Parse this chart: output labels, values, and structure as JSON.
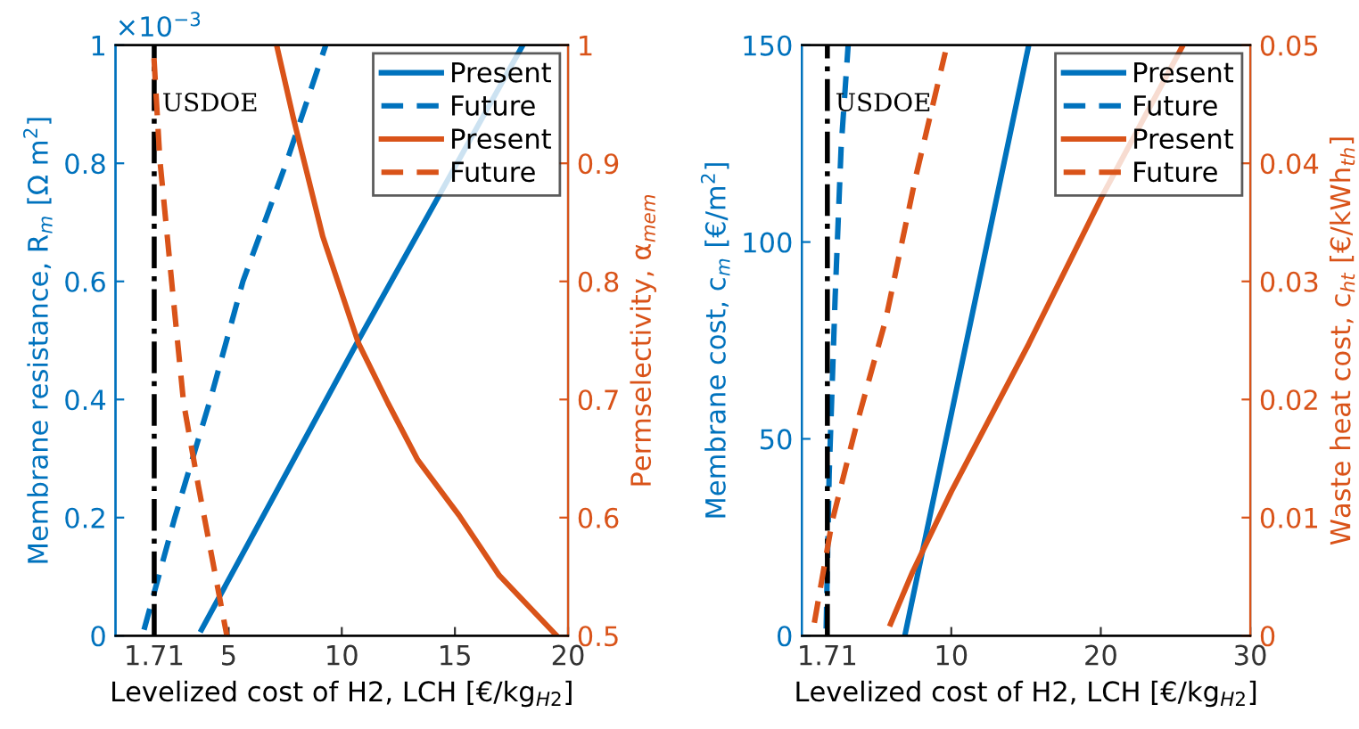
{
  "chart_data": [
    {
      "type": "line",
      "xlabel": "Levelized cost of H2, LCH [€/kg$_{H2}$]",
      "ylabel": "Membrane resistance, R$_{m}$ [Ω m$^{2}$]",
      "y2label": "Permselectivity, α$_{mem}$",
      "xlim": [
        0,
        20
      ],
      "xticks": [
        1.71,
        5,
        10,
        15,
        20
      ],
      "ylim": [
        0,
        1
      ],
      "yticks": [
        0,
        0.2,
        0.4,
        0.6,
        0.8,
        1
      ],
      "y2lim": [
        0.5,
        1
      ],
      "y2ticks": [
        0.5,
        0.6,
        0.7,
        0.8,
        0.9,
        1
      ],
      "annotations": [
        "×10$^{−3}$"
      ],
      "grid": false,
      "legend": "top right",
      "ref_lines": [
        {
          "axis": "x",
          "value": 1.71,
          "label": "USDOE",
          "color": "#000000",
          "line_style": "dashdot"
        }
      ],
      "series": [
        {
          "name": "Present",
          "color": "#0072bd",
          "line_style": "solid",
          "x": [
            3.8,
            10.73,
            18.0
          ],
          "values": [
            0.01,
            0.5,
            1
          ]
        },
        {
          "name": "Future",
          "color": "#0072bd",
          "line_style": "dashed",
          "x": [
            1.26,
            2.62,
            4.19,
            5.63,
            7.54,
            9.29
          ],
          "values": [
            0.01,
            0.2,
            0.4,
            0.6,
            0.8,
            1
          ]
        },
        {
          "name": "Present",
          "color": "#d95319",
          "line_style": "solid",
          "axis": "y2",
          "x": [
            7.12,
            7.85,
            9.16,
            10.73,
            12.04,
            13.35,
            15.18,
            16.96,
            19.5
          ],
          "values": [
            1,
            0.939,
            0.838,
            0.748,
            0.697,
            0.649,
            0.602,
            0.551,
            0.5
          ]
        },
        {
          "name": "Future",
          "color": "#d95319",
          "line_style": "dashed",
          "axis": "y2",
          "x": [
            1.7,
            1.96,
            2.49,
            3.01,
            3.66,
            4.92
          ],
          "values": [
            0.989,
            0.903,
            0.798,
            0.697,
            0.627,
            0.5
          ]
        }
      ]
    },
    {
      "type": "line",
      "xlabel": "Levelized cost of H2, LCH [€/kg$_{H2}$]",
      "ylabel": "Membrane cost, c$_{m}$ [€/m$^{2}$]",
      "y2label": "Waste heat cost, c$_{ht}$ [€/kWh$_{th}$]",
      "xlim": [
        0,
        30
      ],
      "xticks": [
        1.71,
        10,
        20,
        30
      ],
      "ylim": [
        0,
        150
      ],
      "yticks": [
        0,
        50,
        100,
        150
      ],
      "y2lim": [
        0,
        0.05
      ],
      "y2ticks": [
        0,
        0.01,
        0.02,
        0.03,
        0.04,
        0.05
      ],
      "grid": false,
      "legend": "top right",
      "ref_lines": [
        {
          "axis": "x",
          "value": 1.71,
          "label": "USDOE",
          "color": "#000000",
          "line_style": "dashdot"
        }
      ],
      "series": [
        {
          "name": "Present",
          "color": "#0072bd",
          "line_style": "solid",
          "x": [
            6.89,
            15.18
          ],
          "values": [
            0,
            150
          ]
        },
        {
          "name": "Future",
          "color": "#0072bd",
          "line_style": "dashed",
          "x": [
            1.63,
            1.83,
            2.23,
            2.63,
            3.1
          ],
          "values": [
            1.8,
            41,
            86,
            124,
            150
          ]
        },
        {
          "name": "Present",
          "color": "#d95319",
          "line_style": "solid",
          "axis": "y2",
          "x": [
            5.94,
            7.41,
            10.0,
            15.18,
            20.04,
            25.5
          ],
          "values": [
            0.001,
            0.0054,
            0.0122,
            0.0247,
            0.0371,
            0.05
          ]
        },
        {
          "name": "Future",
          "color": "#d95319",
          "line_style": "dashed",
          "axis": "y2",
          "x": [
            0.84,
            2.03,
            3.63,
            5.62,
            7.61,
            9.6
          ],
          "values": [
            0.0011,
            0.0097,
            0.0177,
            0.0268,
            0.0388,
            0.0494
          ]
        }
      ]
    }
  ]
}
